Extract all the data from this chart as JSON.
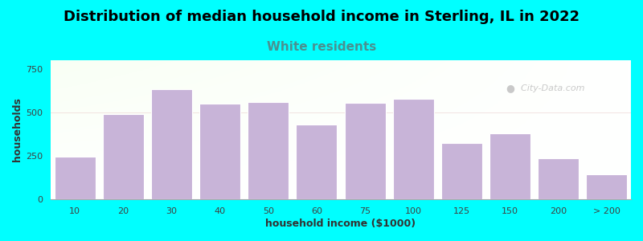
{
  "title": "Distribution of median household income in Sterling, IL in 2022",
  "subtitle": "White residents",
  "xlabel": "household income ($1000)",
  "ylabel": "households",
  "bar_labels": [
    "10",
    "20",
    "30",
    "40",
    "50",
    "60",
    "75",
    "100",
    "125",
    "150",
    "200",
    "> 200"
  ],
  "bar_heights": [
    245,
    490,
    635,
    550,
    560,
    430,
    555,
    580,
    325,
    380,
    235,
    145
  ],
  "bar_color": "#c8b4d8",
  "background_color": "#00ffff",
  "title_fontsize": 13,
  "subtitle_fontsize": 11,
  "subtitle_color": "#4a9090",
  "axis_label_fontsize": 9,
  "tick_fontsize": 8,
  "yticks": [
    0,
    250,
    500,
    750
  ],
  "ylim": [
    0,
    800
  ],
  "watermark": "City-Data.com",
  "plot_left_color": "#e8f2e0",
  "plot_right_color": "#f8faf8"
}
